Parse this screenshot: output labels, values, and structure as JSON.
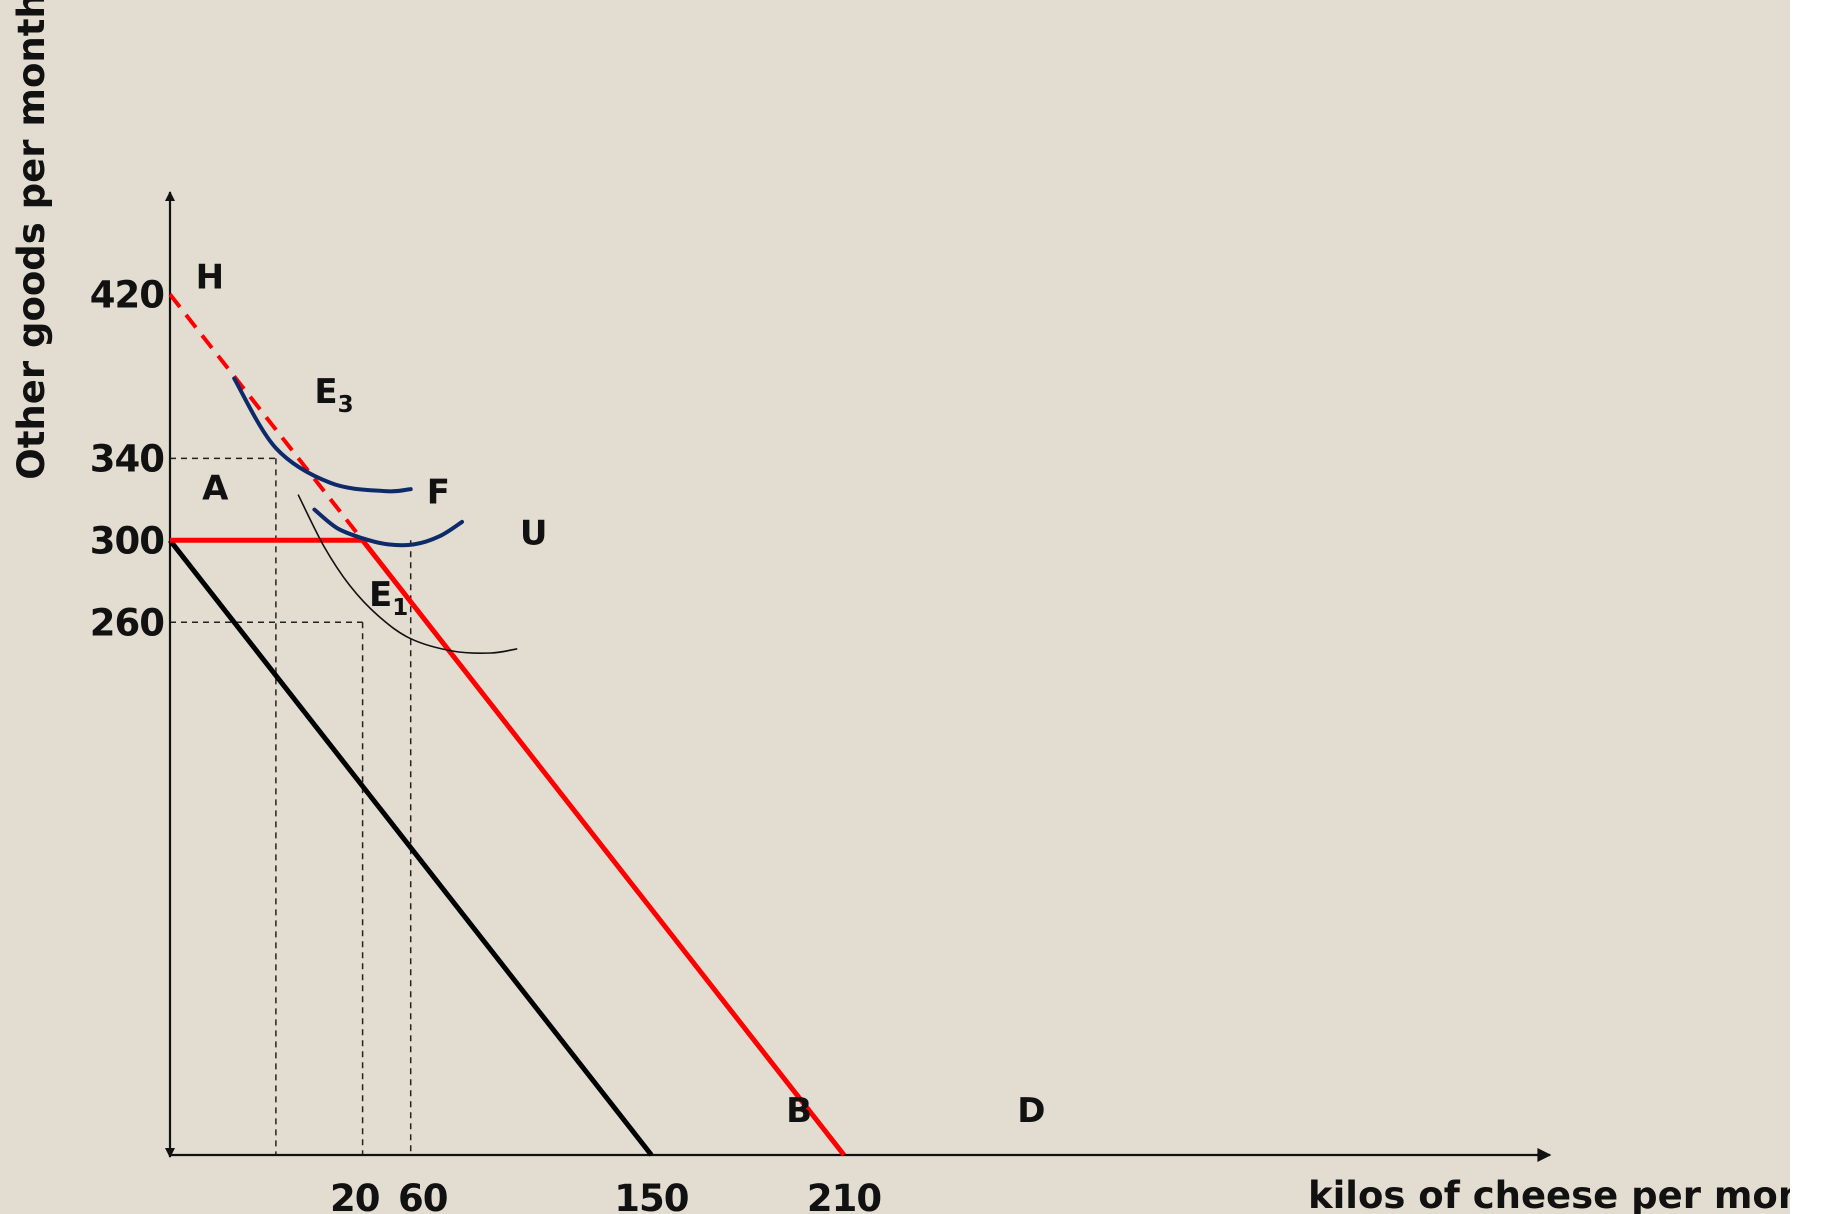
{
  "chart_data": {
    "type": "line",
    "xlabel": "kilos of cheese per month",
    "ylabel": "Other goods per month",
    "x_ticks": [
      {
        "value": 20,
        "label": "20"
      },
      {
        "value": 60,
        "label": "60"
      },
      {
        "value": 150,
        "label": "150"
      },
      {
        "value": 210,
        "label": "210"
      }
    ],
    "y_ticks": [
      {
        "value": 260,
        "label": "260"
      },
      {
        "value": 300,
        "label": "300"
      },
      {
        "value": 340,
        "label": "340"
      },
      {
        "value": 420,
        "label": "420"
      }
    ],
    "series": [
      {
        "key": "budget_AB",
        "style": "solid",
        "color": "#000000",
        "points": [
          [
            0,
            300
          ],
          [
            150,
            0
          ]
        ]
      },
      {
        "key": "budget_AF",
        "style": "solid",
        "color": "#ff0000",
        "points": [
          [
            0,
            300
          ],
          [
            60,
            300
          ]
        ]
      },
      {
        "key": "budget_FD",
        "style": "solid",
        "color": "#ff0000",
        "points": [
          [
            60,
            300
          ],
          [
            210,
            0
          ]
        ]
      },
      {
        "key": "budget_HF",
        "style": "dashed",
        "color": "#ff0000",
        "points": [
          [
            0,
            420
          ],
          [
            60,
            300
          ]
        ]
      }
    ],
    "indifference_curves": [
      {
        "key": "IC_E3",
        "color": "#0d2a6b",
        "points": [
          [
            20,
            379
          ],
          [
            33,
            345
          ],
          [
            50,
            328
          ],
          [
            67,
            324
          ],
          [
            75,
            325
          ]
        ]
      },
      {
        "key": "IC_U",
        "color": "#0d2a6b",
        "points": [
          [
            45,
            315
          ],
          [
            52,
            306
          ],
          [
            60,
            301
          ],
          [
            68,
            298
          ],
          [
            76,
            298
          ],
          [
            84,
            302
          ],
          [
            91,
            309
          ]
        ]
      },
      {
        "key": "IC_E1",
        "color": "#111111",
        "points": [
          [
            40,
            322
          ],
          [
            48,
            297
          ],
          [
            56,
            278
          ],
          [
            65,
            263
          ],
          [
            75,
            252
          ],
          [
            88,
            246
          ],
          [
            100,
            245
          ],
          [
            108,
            247
          ]
        ]
      }
    ],
    "guides": [
      {
        "key": "g340h",
        "points": [
          [
            0,
            340
          ],
          [
            33,
            340
          ]
        ]
      },
      {
        "key": "g260h",
        "points": [
          [
            0,
            260
          ],
          [
            60,
            260
          ]
        ]
      },
      {
        "key": "g340v",
        "points": [
          [
            33,
            340
          ],
          [
            33,
            0
          ]
        ]
      },
      {
        "key": "g20v",
        "points": [
          [
            60,
            260
          ],
          [
            60,
            0
          ]
        ]
      },
      {
        "key": "g60v",
        "points": [
          [
            75,
            300
          ],
          [
            75,
            0
          ]
        ]
      }
    ],
    "point_labels": [
      {
        "text": "H",
        "x": 8,
        "y": 423
      },
      {
        "text": "A",
        "x": 10,
        "y": 320
      },
      {
        "text": "F",
        "x": 80,
        "y": 318
      },
      {
        "text": "U",
        "x": 109,
        "y": 298
      },
      {
        "text": "B",
        "x": 192,
        "y": 16
      },
      {
        "text": "D",
        "x": 264,
        "y": 16
      }
    ],
    "subscript_labels": [
      {
        "text": "E",
        "sub": "3",
        "x": 45,
        "y": 367
      },
      {
        "text": "E",
        "sub": "1",
        "x": 62,
        "y": 268
      }
    ],
    "xlim": [
      0,
      430
    ],
    "ylim": [
      0,
      470
    ],
    "grid": false,
    "legend": "none"
  }
}
